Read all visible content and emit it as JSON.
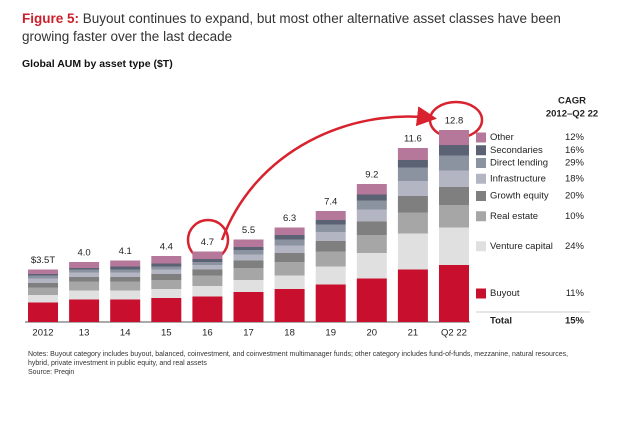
{
  "chart_data": {
    "type": "bar",
    "stacked": true,
    "title_label": "Figure 5:",
    "title": "Buyout continues to expand, but most other alternative asset classes have been growing faster over the last decade",
    "subtitle": "Global AUM by asset type ($T)",
    "categories": [
      "2012",
      "13",
      "14",
      "15",
      "16",
      "17",
      "18",
      "19",
      "20",
      "21",
      "Q2 22"
    ],
    "series": [
      {
        "name": "Buyout",
        "color": "#c8102e",
        "values": [
          1.3,
          1.5,
          1.5,
          1.6,
          1.7,
          2.0,
          2.2,
          2.5,
          2.9,
          3.5,
          3.8
        ]
      },
      {
        "name": "Venture capital",
        "color": "#e0e0e0",
        "values": [
          0.5,
          0.6,
          0.6,
          0.6,
          0.7,
          0.8,
          0.9,
          1.2,
          1.7,
          2.4,
          2.5
        ]
      },
      {
        "name": "Real estate",
        "color": "#a6a6a6",
        "values": [
          0.5,
          0.6,
          0.6,
          0.6,
          0.7,
          0.8,
          0.9,
          1.0,
          1.2,
          1.4,
          1.5
        ]
      },
      {
        "name": "Growth equity",
        "color": "#7f7f7f",
        "values": [
          0.3,
          0.3,
          0.3,
          0.4,
          0.4,
          0.5,
          0.6,
          0.7,
          0.9,
          1.1,
          1.2
        ]
      },
      {
        "name": "Infrastructure",
        "color": "#b3b6c2",
        "values": [
          0.3,
          0.3,
          0.3,
          0.3,
          0.3,
          0.4,
          0.5,
          0.6,
          0.8,
          1.0,
          1.1
        ]
      },
      {
        "name": "Direct lending",
        "color": "#8c93a0",
        "values": [
          0.2,
          0.2,
          0.2,
          0.2,
          0.2,
          0.3,
          0.4,
          0.5,
          0.6,
          0.9,
          1.0
        ]
      },
      {
        "name": "Secondaries",
        "color": "#5b6273",
        "values": [
          0.1,
          0.1,
          0.2,
          0.2,
          0.2,
          0.2,
          0.3,
          0.3,
          0.4,
          0.5,
          0.7
        ]
      },
      {
        "name": "Other",
        "color": "#b5789a",
        "values": [
          0.3,
          0.4,
          0.4,
          0.5,
          0.5,
          0.5,
          0.5,
          0.6,
          0.7,
          0.8,
          1.0
        ]
      }
    ],
    "totals": {
      "values": [
        3.5,
        4.0,
        4.1,
        4.4,
        4.7,
        5.5,
        6.3,
        7.4,
        9.2,
        11.6,
        12.8
      ],
      "value_labels": [
        "$3.5T",
        "4.0",
        "4.1",
        "4.4",
        "4.7",
        "5.5",
        "6.3",
        "7.4",
        "9.2",
        "11.6",
        "12.8"
      ]
    },
    "cagr": {
      "title": "CAGR",
      "subtitle": "2012–Q2 22",
      "values": [
        11,
        24,
        10,
        20,
        18,
        29,
        16,
        12
      ],
      "value_labels": [
        "11%",
        "24%",
        "10%",
        "20%",
        "18%",
        "29%",
        "16%",
        "12%"
      ],
      "total_name": "Total",
      "total": 15,
      "total_label": "15%"
    },
    "notes": "Notes: Buyout category includes buyout, balanced, coinvestment, and coinvestment multimanager funds; other category includes fund-of-funds, mezzanine, natural resources, hybrid, private investment in public equity, and real assets",
    "source": "Source: Preqin"
  }
}
